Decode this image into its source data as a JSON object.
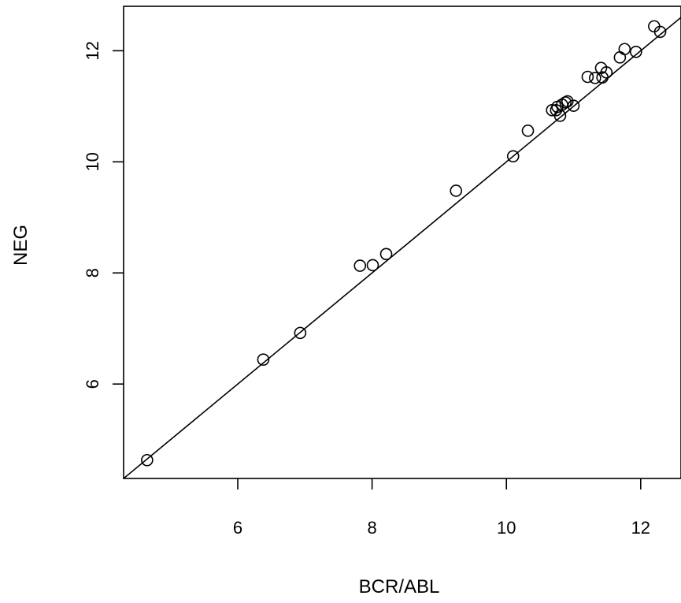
{
  "chart_data": {
    "type": "scatter",
    "title": "",
    "xlabel": "BCR/ABL",
    "ylabel": "NEG",
    "xlim": [
      4.3,
      12.6
    ],
    "ylim": [
      4.3,
      12.8
    ],
    "x_ticks": [
      6,
      8,
      10,
      12
    ],
    "y_ticks": [
      6,
      8,
      10,
      12
    ],
    "x_tick_labels": [
      "6",
      "8",
      "10",
      "12"
    ],
    "y_tick_labels": [
      "6",
      "8",
      "10",
      "12"
    ],
    "grid": false,
    "legend": "none",
    "marker": "open-circle",
    "line": {
      "type": "reference-line",
      "points": [
        [
          4.3,
          4.3
        ],
        [
          12.6,
          12.6
        ]
      ]
    },
    "points": [
      [
        4.65,
        4.63
      ],
      [
        6.38,
        6.44
      ],
      [
        6.93,
        6.92
      ],
      [
        7.82,
        8.13
      ],
      [
        8.01,
        8.14
      ],
      [
        8.21,
        8.34
      ],
      [
        9.25,
        9.48
      ],
      [
        10.1,
        10.1
      ],
      [
        10.32,
        10.56
      ],
      [
        10.68,
        10.93
      ],
      [
        10.74,
        10.93
      ],
      [
        10.76,
        10.99
      ],
      [
        10.8,
        10.83
      ],
      [
        10.83,
        11.03
      ],
      [
        10.88,
        11.07
      ],
      [
        10.91,
        11.09
      ],
      [
        11.0,
        11.01
      ],
      [
        11.21,
        11.53
      ],
      [
        11.32,
        11.51
      ],
      [
        11.41,
        11.69
      ],
      [
        11.43,
        11.52
      ],
      [
        11.49,
        11.61
      ],
      [
        11.69,
        11.88
      ],
      [
        11.76,
        12.03
      ],
      [
        11.93,
        11.98
      ],
      [
        12.2,
        12.44
      ],
      [
        12.29,
        12.34
      ]
    ]
  },
  "colors": {
    "background": "#ffffff",
    "foreground": "#000000"
  }
}
